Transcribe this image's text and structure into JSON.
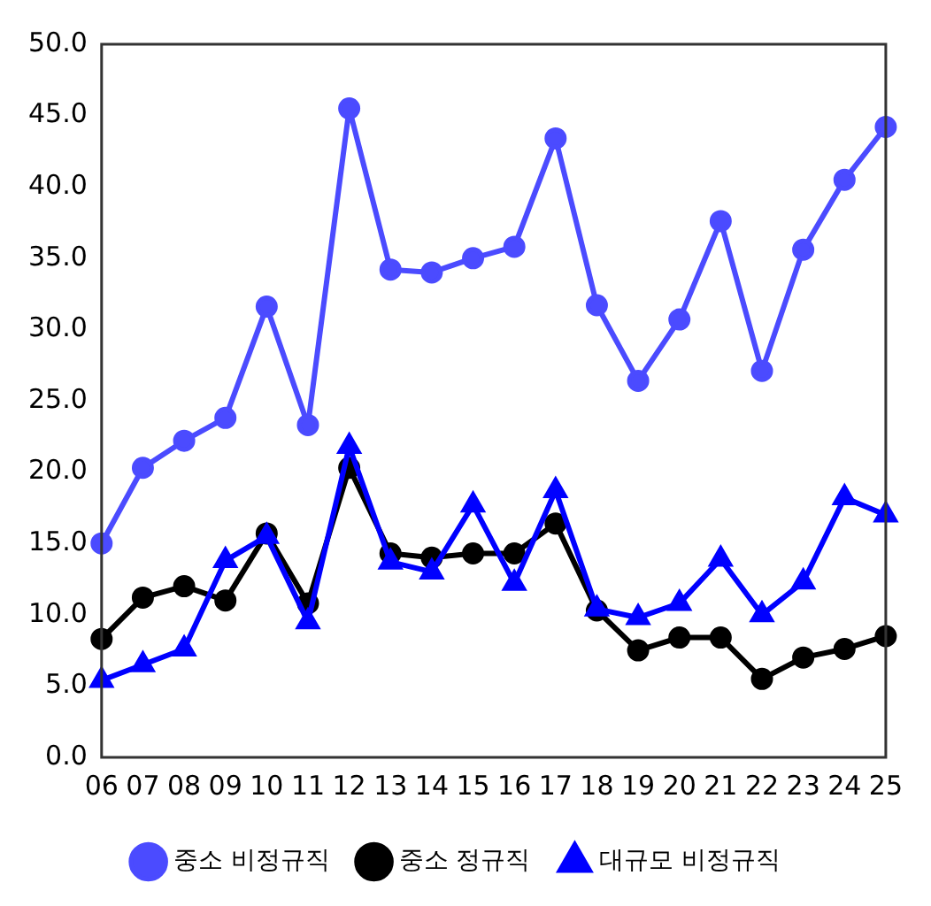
{
  "chart_data": {
    "type": "line",
    "categories": [
      "06",
      "07",
      "08",
      "09",
      "10",
      "11",
      "12",
      "13",
      "14",
      "15",
      "16",
      "17",
      "18",
      "19",
      "20",
      "21",
      "22",
      "23",
      "24",
      "25"
    ],
    "series": [
      {
        "name": "중소 비정규직",
        "color": "#4b4bff",
        "marker": "circle",
        "values": [
          15.0,
          20.3,
          22.2,
          23.8,
          31.6,
          23.3,
          45.5,
          34.2,
          34.0,
          35.0,
          35.8,
          43.4,
          31.7,
          26.4,
          30.7,
          37.6,
          27.1,
          35.6,
          40.5,
          44.2
        ]
      },
      {
        "name": "중소 정규직",
        "color": "#000000",
        "marker": "circle",
        "values": [
          8.3,
          11.2,
          12.0,
          11.0,
          15.7,
          10.8,
          20.3,
          14.3,
          14.0,
          14.3,
          14.3,
          16.4,
          10.3,
          7.5,
          8.4,
          8.4,
          5.5,
          7.0,
          7.6,
          8.5
        ]
      },
      {
        "name": "대규모 비정규직",
        "color": "#0000ff",
        "marker": "triangle",
        "values": [
          5.4,
          6.5,
          7.6,
          13.8,
          15.5,
          9.5,
          21.8,
          13.7,
          13.0,
          17.7,
          12.2,
          18.7,
          10.4,
          9.8,
          10.8,
          13.9,
          10.0,
          12.3,
          18.2,
          17.0
        ]
      }
    ],
    "ylim": [
      0,
      50
    ],
    "yticks": [
      {
        "value": 0,
        "label": "0.0"
      },
      {
        "value": 5,
        "label": "5.0"
      },
      {
        "value": 10,
        "label": "10.0"
      },
      {
        "value": 15,
        "label": "15.0"
      },
      {
        "value": 20,
        "label": "20.0"
      },
      {
        "value": 25,
        "label": "25.0"
      },
      {
        "value": 30,
        "label": "30.0"
      },
      {
        "value": 35,
        "label": "35.0"
      },
      {
        "value": 40,
        "label": "40.0"
      },
      {
        "value": 45,
        "label": "45.0"
      },
      {
        "value": 50,
        "label": "50.0"
      }
    ],
    "grid": false,
    "legend": "bottom",
    "line_style": "solid"
  }
}
